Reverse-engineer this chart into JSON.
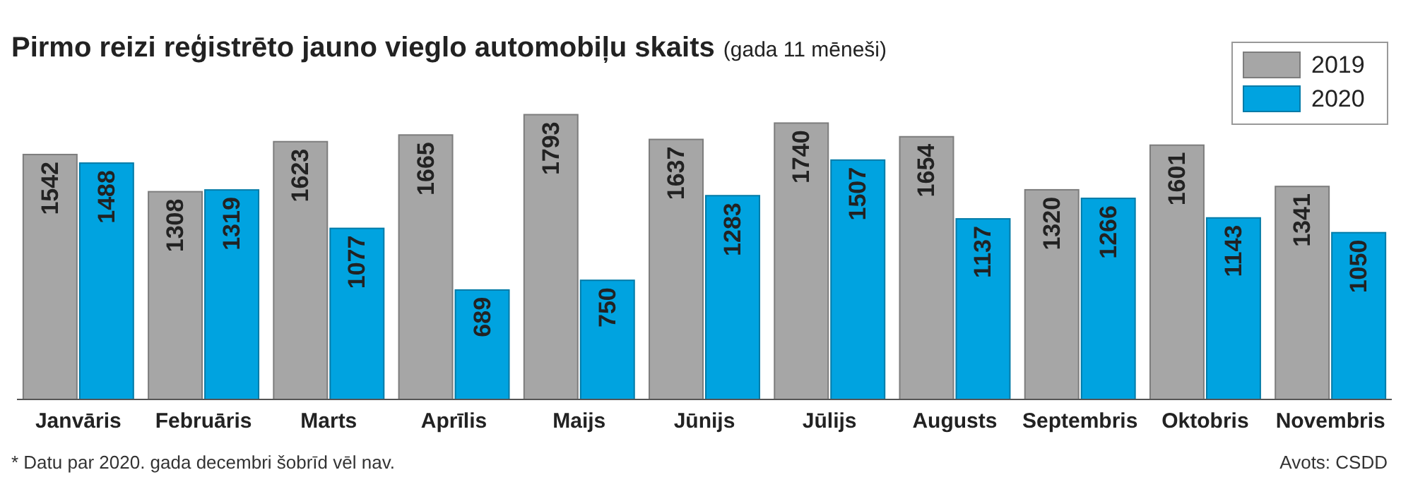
{
  "chart_data": {
    "type": "bar",
    "title": "Pirmo reizi reģistrēto jauno vieglo automobiļu skaits",
    "subtitle": "(gada 11 mēneši)",
    "categories": [
      "Janvāris",
      "Februāris",
      "Marts",
      "Aprīlis",
      "Maijs",
      "Jūnijs",
      "Jūlijs",
      "Augusts",
      "Septembris",
      "Oktobris",
      "Novembris"
    ],
    "series": [
      {
        "name": "2019",
        "color": "#a6a6a6",
        "values": [
          1542,
          1308,
          1623,
          1665,
          1793,
          1637,
          1740,
          1654,
          1320,
          1601,
          1341
        ]
      },
      {
        "name": "2020",
        "color": "#00a3e0",
        "values": [
          1488,
          1319,
          1077,
          689,
          750,
          1283,
          1507,
          1137,
          1266,
          1143,
          1050
        ]
      }
    ],
    "data_labels": true,
    "legend": "top right",
    "grid": false,
    "annotations": [
      "* Datu par 2020. gada decembri šobrīd vēl nav.",
      "Avots: CSDD"
    ]
  }
}
